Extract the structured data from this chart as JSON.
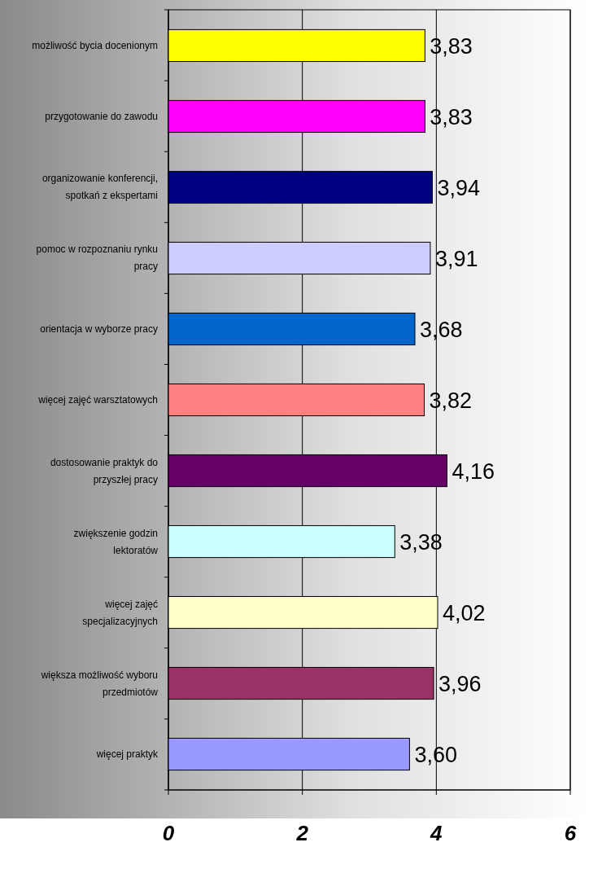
{
  "chart_data": {
    "type": "bar",
    "orientation": "horizontal",
    "categories": [
      "możliwość bycia docenionym",
      "przygotowanie do zawodu",
      "organizowanie konferencji, spotkań z ekspertami",
      "pomoc w rozpoznaniu rynku pracy",
      "orientacja w wyborze pracy",
      "więcej zajęć warsztatowych",
      "dostosowanie praktyk do przyszłej pracy",
      "zwiększenie godzin lektoratów",
      "więcej zajęć specjalizacyjnych",
      "większa możliwość wyboru przedmiotów",
      "więcej praktyk"
    ],
    "values": [
      3.83,
      3.83,
      3.94,
      3.91,
      3.68,
      3.82,
      4.16,
      3.38,
      4.02,
      3.96,
      3.6
    ],
    "colors": [
      "#ffff00",
      "#ff00ff",
      "#000080",
      "#ccccff",
      "#0066cc",
      "#ff8080",
      "#660066",
      "#ccffff",
      "#ffffcc",
      "#993366",
      "#9999ff"
    ],
    "value_labels": [
      "3,83",
      "3,83",
      "3,94",
      "3,91",
      "3,68",
      "3,82",
      "4,16",
      "3,38",
      "4,02",
      "3,96",
      "3,60"
    ],
    "xlim": [
      0,
      6
    ],
    "xticks": [
      0,
      2,
      4,
      6
    ],
    "grid": "x"
  }
}
